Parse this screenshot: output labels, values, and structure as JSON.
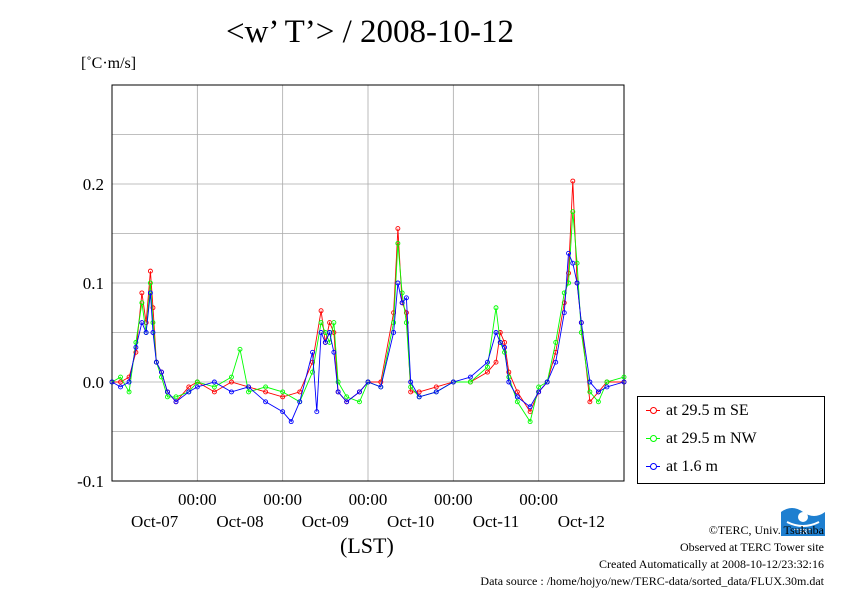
{
  "chart_data": {
    "type": "line",
    "title": "<w’ T’> / 2008-10-12",
    "ylabel": "[˚C·m/s]",
    "xlabel": "(LST)",
    "ylim": [
      -0.1,
      0.3
    ],
    "xlim": [
      0,
      6
    ],
    "y_ticks": [
      -0.1,
      0.0,
      0.1,
      0.2
    ],
    "y_tick_labels": [
      "-0.1",
      "0.0",
      "0.1",
      "0.2"
    ],
    "x_ticks": [
      1,
      2,
      3,
      4,
      5
    ],
    "x_time_labels": [
      "00:00",
      "00:00",
      "00:00",
      "00:00",
      "00:00"
    ],
    "x_date_labels": [
      "Oct-07",
      "Oct-08",
      "Oct-09",
      "Oct-10",
      "Oct-11",
      "Oct-12"
    ],
    "grid": true,
    "legend_position": "right",
    "series": [
      {
        "name": "at 29.5 m SE",
        "color": "#ff0000",
        "x": [
          0.0,
          0.1,
          0.2,
          0.28,
          0.35,
          0.4,
          0.45,
          0.48,
          0.52,
          0.58,
          0.65,
          0.75,
          0.9,
          1.0,
          1.2,
          1.4,
          1.6,
          1.8,
          2.0,
          2.2,
          2.35,
          2.45,
          2.5,
          2.55,
          2.6,
          2.65,
          2.75,
          2.9,
          3.0,
          3.15,
          3.3,
          3.35,
          3.4,
          3.45,
          3.5,
          3.6,
          3.8,
          4.0,
          4.2,
          4.4,
          4.5,
          4.55,
          4.6,
          4.65,
          4.75,
          4.9,
          5.0,
          5.1,
          5.2,
          5.3,
          5.35,
          5.4,
          5.45,
          5.5,
          5.6,
          5.7,
          5.8,
          6.0
        ],
        "y": [
          0.0,
          0.0,
          0.005,
          0.03,
          0.09,
          0.06,
          0.112,
          0.075,
          0.02,
          0.01,
          -0.01,
          -0.02,
          -0.005,
          0.0,
          -0.01,
          0.0,
          -0.005,
          -0.01,
          -0.015,
          -0.01,
          0.02,
          0.072,
          0.04,
          0.06,
          0.05,
          -0.01,
          -0.02,
          -0.01,
          0.0,
          0.0,
          0.07,
          0.155,
          0.08,
          0.07,
          -0.01,
          -0.01,
          -0.005,
          0.0,
          0.0,
          0.01,
          0.02,
          0.05,
          0.04,
          0.01,
          -0.01,
          -0.03,
          -0.01,
          0.0,
          0.03,
          0.08,
          0.11,
          0.203,
          0.1,
          0.06,
          -0.02,
          -0.01,
          0.0,
          0.0
        ]
      },
      {
        "name": "at 29.5 m NW",
        "color": "#00ff00",
        "x": [
          0.0,
          0.1,
          0.2,
          0.28,
          0.35,
          0.4,
          0.45,
          0.48,
          0.52,
          0.58,
          0.65,
          0.75,
          0.9,
          1.0,
          1.2,
          1.4,
          1.5,
          1.6,
          1.8,
          2.0,
          2.2,
          2.35,
          2.45,
          2.5,
          2.55,
          2.6,
          2.65,
          2.75,
          2.9,
          3.0,
          3.15,
          3.3,
          3.35,
          3.4,
          3.45,
          3.5,
          3.6,
          3.8,
          4.0,
          4.2,
          4.4,
          4.5,
          4.55,
          4.6,
          4.65,
          4.75,
          4.9,
          5.0,
          5.1,
          5.2,
          5.3,
          5.35,
          5.4,
          5.45,
          5.5,
          5.6,
          5.7,
          5.8,
          6.0
        ],
        "y": [
          0.0,
          0.005,
          -0.01,
          0.04,
          0.08,
          0.05,
          0.1,
          0.06,
          0.02,
          0.005,
          -0.015,
          -0.015,
          -0.01,
          0.0,
          -0.005,
          0.005,
          0.033,
          -0.01,
          -0.005,
          -0.01,
          -0.02,
          0.01,
          0.06,
          0.05,
          0.04,
          0.06,
          0.0,
          -0.015,
          -0.02,
          0.0,
          -0.005,
          0.06,
          0.14,
          0.09,
          0.06,
          -0.005,
          -0.015,
          -0.01,
          0.0,
          0.0,
          0.015,
          0.075,
          0.04,
          0.03,
          0.005,
          -0.02,
          -0.04,
          -0.005,
          0.0,
          0.04,
          0.09,
          0.1,
          0.172,
          0.12,
          0.05,
          -0.01,
          -0.02,
          0.0,
          0.005
        ]
      },
      {
        "name": "at 1.6 m",
        "color": "#0000ff",
        "x": [
          0.0,
          0.1,
          0.2,
          0.28,
          0.35,
          0.4,
          0.45,
          0.48,
          0.52,
          0.58,
          0.65,
          0.75,
          0.9,
          1.0,
          1.2,
          1.4,
          1.6,
          1.8,
          2.0,
          2.1,
          2.2,
          2.35,
          2.4,
          2.45,
          2.5,
          2.55,
          2.6,
          2.65,
          2.75,
          2.9,
          3.0,
          3.15,
          3.3,
          3.35,
          3.4,
          3.45,
          3.5,
          3.6,
          3.8,
          4.0,
          4.2,
          4.4,
          4.5,
          4.55,
          4.6,
          4.65,
          4.75,
          4.9,
          5.0,
          5.1,
          5.2,
          5.3,
          5.35,
          5.4,
          5.45,
          5.5,
          5.6,
          5.7,
          5.8,
          6.0
        ],
        "y": [
          0.0,
          -0.005,
          0.0,
          0.035,
          0.06,
          0.05,
          0.09,
          0.05,
          0.02,
          0.01,
          -0.01,
          -0.02,
          -0.01,
          -0.005,
          0.0,
          -0.01,
          -0.005,
          -0.02,
          -0.03,
          -0.04,
          -0.02,
          0.03,
          -0.03,
          0.05,
          0.04,
          0.05,
          0.03,
          -0.01,
          -0.02,
          -0.01,
          0.0,
          -0.005,
          0.05,
          0.1,
          0.08,
          0.085,
          0.0,
          -0.015,
          -0.01,
          0.0,
          0.005,
          0.02,
          0.05,
          0.04,
          0.035,
          0.0,
          -0.015,
          -0.025,
          -0.01,
          0.0,
          0.02,
          0.07,
          0.13,
          0.12,
          0.1,
          0.06,
          0.0,
          -0.01,
          -0.005,
          0.0
        ]
      }
    ]
  },
  "credits": {
    "copyright": "©TERC, Univ. Tsukuba",
    "site": "Observed at TERC Tower site",
    "created": "Created Automatically at 2008-10-12/23:32:16",
    "source": "Data source : /home/hojyo/new/TERC-data/sorted_data/FLUX.30m.dat"
  },
  "logo": {
    "text": "TERC",
    "color": "#1e7fd0"
  }
}
